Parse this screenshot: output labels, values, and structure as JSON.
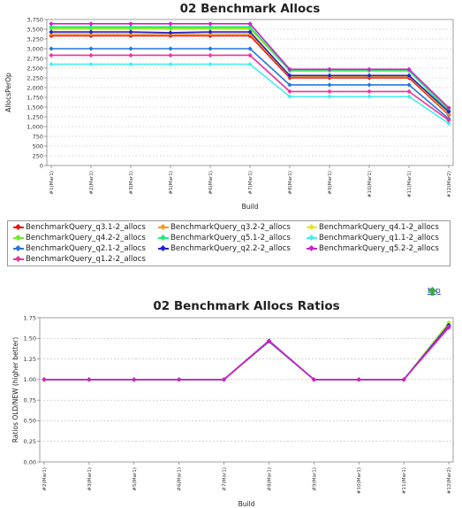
{
  "chart_data": [
    {
      "type": "line",
      "title": "02 Benchmark Allocs",
      "xlabel": "Build",
      "ylabel": "AllocsPerOp",
      "ylim": [
        0,
        3750
      ],
      "yticks": [
        "0",
        "250",
        "500",
        "750",
        "1,000",
        "1,250",
        "1,500",
        "1,750",
        "2,000",
        "2,250",
        "2,500",
        "2,750",
        "3,000",
        "3,250",
        "3,500",
        "3,750"
      ],
      "categories": [
        "#1(Mar1)",
        "#2(Mar1)",
        "#3(Mar1)",
        "#5(Mar1)",
        "#6(Mar1)",
        "#7(Mar1)",
        "#8(Mar1)",
        "#9(Mar1)",
        "#10(Mar1)",
        "#11(Mar1)",
        "#12(Mar2)"
      ],
      "grid": true,
      "legend_position": "bottom",
      "series": [
        {
          "name": "BenchmarkQuery_q3.1-2_allocs",
          "color": "#ee1111",
          "values": [
            3330,
            3330,
            3330,
            3330,
            3330,
            3330,
            2250,
            2250,
            2250,
            2250,
            1300
          ]
        },
        {
          "name": "BenchmarkQuery_q3.2-2_allocs",
          "color": "#f0a020",
          "values": [
            3380,
            3380,
            3380,
            3380,
            3380,
            3380,
            2290,
            2290,
            2290,
            2290,
            1320
          ]
        },
        {
          "name": "BenchmarkQuery_q4.1-2_allocs",
          "color": "#e6e620",
          "values": [
            3500,
            3500,
            3500,
            3500,
            3500,
            3500,
            2440,
            2440,
            2440,
            2440,
            1420
          ]
        },
        {
          "name": "BenchmarkQuery_q4.2-2_allocs",
          "color": "#66ee22",
          "values": [
            3530,
            3530,
            3530,
            3530,
            3530,
            3530,
            2470,
            2470,
            2470,
            2470,
            1450
          ]
        },
        {
          "name": "BenchmarkQuery_q5.1-2_allocs",
          "color": "#22ee77",
          "values": [
            3560,
            3560,
            3560,
            3560,
            3560,
            3560,
            2430,
            2430,
            2430,
            2430,
            1400
          ]
        },
        {
          "name": "BenchmarkQuery_q1.1-2_allocs",
          "color": "#44eeee",
          "values": [
            2600,
            2600,
            2600,
            2600,
            2600,
            2600,
            1770,
            1770,
            1770,
            1770,
            1080
          ]
        },
        {
          "name": "BenchmarkQuery_q2.1-2_allocs",
          "color": "#2277dd",
          "values": [
            3000,
            3000,
            3000,
            3000,
            3000,
            3000,
            2070,
            2070,
            2070,
            2070,
            1200
          ]
        },
        {
          "name": "BenchmarkQuery_q2.2-2_allocs",
          "color": "#2222cc",
          "values": [
            3430,
            3430,
            3430,
            3410,
            3430,
            3430,
            2310,
            2310,
            2310,
            2310,
            1380
          ]
        },
        {
          "name": "BenchmarkQuery_q5.2-2_allocs",
          "color": "#cc22cc",
          "values": [
            3640,
            3640,
            3640,
            3640,
            3640,
            3640,
            2470,
            2470,
            2470,
            2470,
            1480
          ]
        },
        {
          "name": "BenchmarkQuery_q1.2-2_allocs",
          "color": "#ee3399",
          "values": [
            2830,
            2830,
            2830,
            2830,
            2830,
            2830,
            1900,
            1900,
            1900,
            1900,
            1160
          ]
        }
      ]
    },
    {
      "type": "line",
      "title": "02 Benchmark Allocs Ratios",
      "xlabel": "Build",
      "ylabel": "Ratios OLD/NEW (higher better)",
      "ylim": [
        0,
        1.75
      ],
      "yticks": [
        "0.00",
        "0.25",
        "0.50",
        "0.75",
        "1.00",
        "1.25",
        "1.50",
        "1.75"
      ],
      "categories": [
        "#2(Mar1)",
        "#3(Mar1)",
        "#5(Mar1)",
        "#6(Mar1)",
        "#7(Mar1)",
        "#8(Mar1)",
        "#9(Mar1)",
        "#10(Mar1)",
        "#11(Mar1)",
        "#12(Mar2)"
      ],
      "grid": true,
      "series": [
        {
          "color": "#66ee22",
          "values": [
            1.0,
            1.0,
            1.0,
            1.0,
            1.0,
            1.47,
            1.0,
            1.0,
            1.0,
            1.69
          ]
        },
        {
          "color": "#e6e620",
          "values": [
            1.0,
            1.0,
            1.0,
            1.0,
            1.0,
            1.47,
            1.0,
            1.0,
            1.0,
            1.68
          ]
        },
        {
          "color": "#22ee77",
          "values": [
            1.0,
            1.0,
            1.0,
            1.0,
            1.0,
            1.47,
            1.0,
            1.0,
            1.0,
            1.66
          ]
        },
        {
          "color": "#2277dd",
          "values": [
            1.0,
            1.0,
            1.0,
            1.0,
            1.0,
            1.46,
            1.0,
            1.0,
            1.0,
            1.65
          ]
        },
        {
          "color": "#ee1111",
          "values": [
            1.0,
            1.0,
            1.0,
            1.0,
            1.0,
            1.47,
            1.0,
            1.0,
            1.0,
            1.64
          ]
        },
        {
          "color": "#44eeee",
          "values": [
            1.0,
            1.0,
            1.0,
            1.0,
            1.0,
            1.47,
            1.0,
            1.0,
            1.0,
            1.64
          ]
        },
        {
          "color": "#2222cc",
          "values": [
            1.0,
            1.0,
            1.0,
            1.0,
            1.0,
            1.47,
            1.0,
            1.0,
            1.0,
            1.66
          ]
        },
        {
          "color": "#ee3399",
          "values": [
            1.0,
            1.0,
            1.0,
            1.0,
            1.0,
            1.47,
            1.0,
            1.0,
            1.0,
            1.64
          ]
        },
        {
          "color": "#cc22cc",
          "values": [
            1.0,
            1.0,
            1.0,
            1.0,
            1.0,
            1.47,
            1.0,
            1.0,
            1.0,
            1.63
          ]
        }
      ]
    }
  ],
  "nav": {
    "top_label": "top",
    "top_icon": "green-up-arrow-icon",
    "top_icon_color": "#3caa3c"
  }
}
